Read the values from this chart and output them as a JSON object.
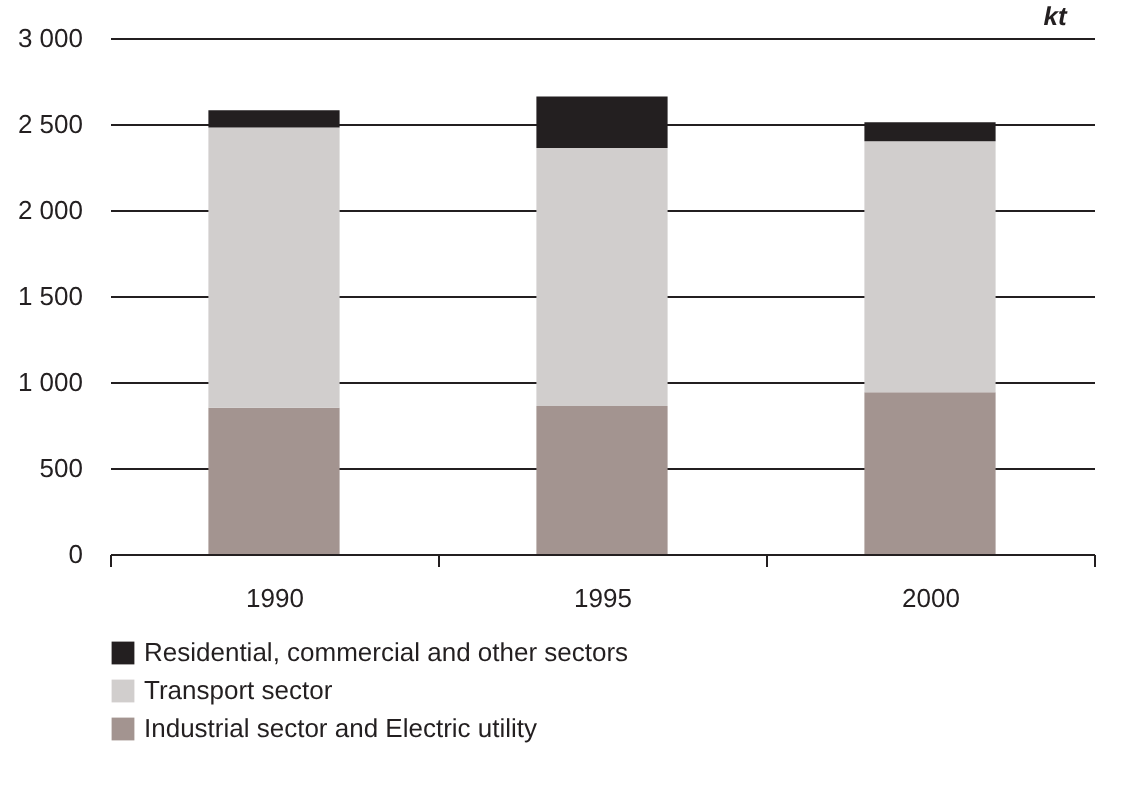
{
  "chart_data": {
    "type": "bar",
    "stacked": true,
    "ylabel": "kt",
    "categories": [
      "1990",
      "1995",
      "2000"
    ],
    "series": [
      {
        "name": "Industrial sector and Electric utility",
        "color": "#a39490",
        "values": [
          850,
          860,
          940
        ]
      },
      {
        "name": "Transport sector",
        "color": "#d1cecd",
        "values": [
          1630,
          1500,
          1460
        ]
      },
      {
        "name": "Residential, commercial and other sectors",
        "color": "#231f20",
        "values": [
          100,
          300,
          110
        ]
      }
    ],
    "ylim": [
      0,
      3000
    ],
    "yticks": [
      {
        "value": 0,
        "label": "0"
      },
      {
        "value": 500,
        "label": "500"
      },
      {
        "value": 1000,
        "label": "1 000"
      },
      {
        "value": 1500,
        "label": "1 500"
      },
      {
        "value": 2000,
        "label": "2 000"
      },
      {
        "value": 2500,
        "label": "2 500"
      },
      {
        "value": 3000,
        "label": "3 000"
      }
    ],
    "grid": "y",
    "legend": "bottom"
  }
}
